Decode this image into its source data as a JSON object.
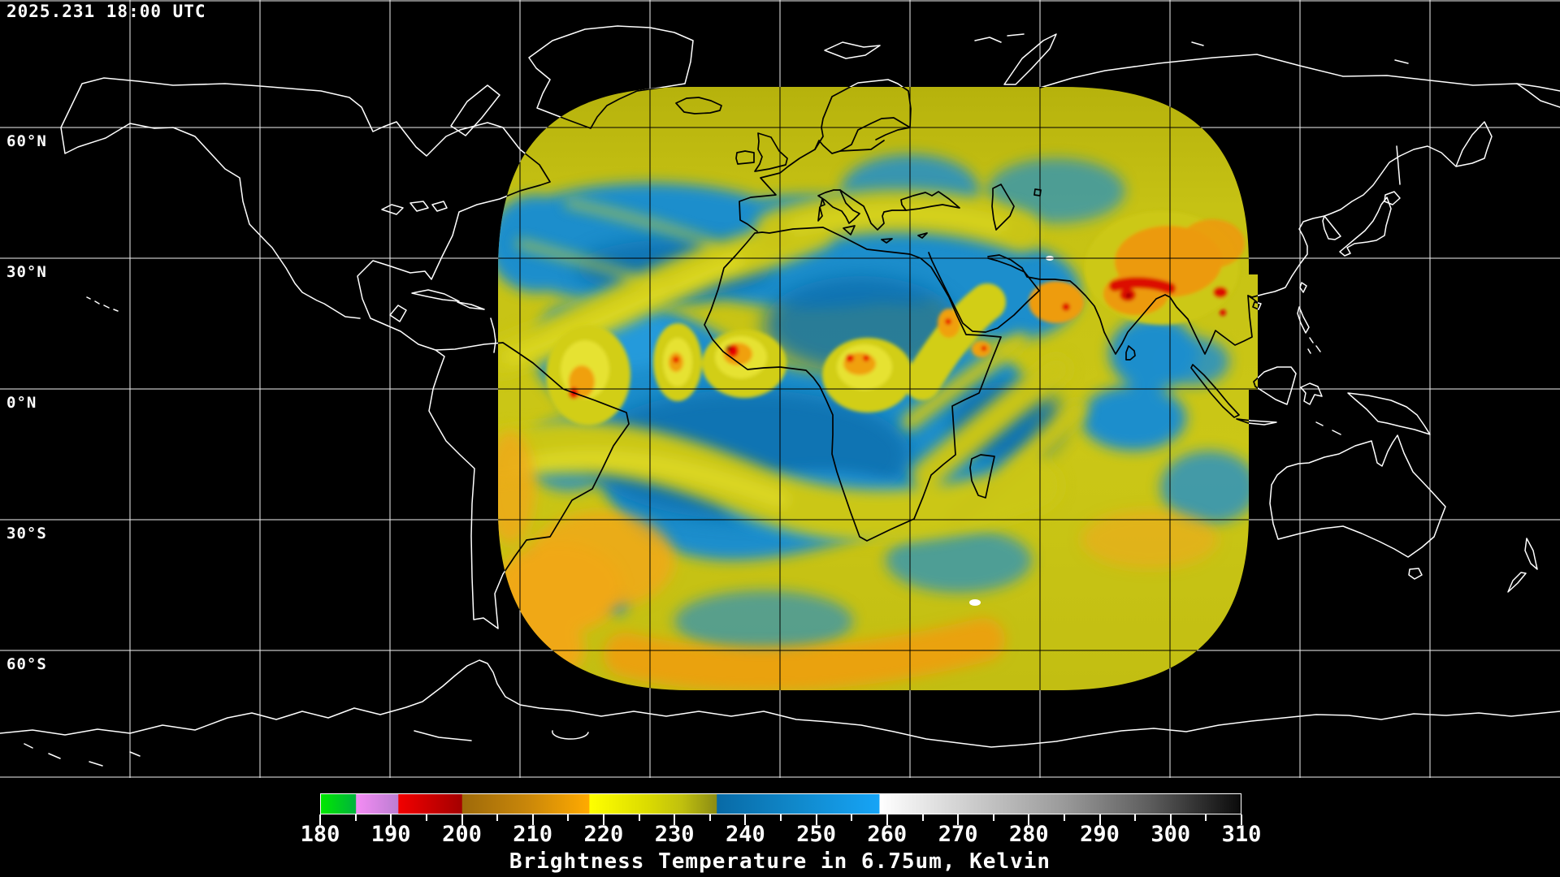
{
  "header": {
    "timestamp": "2025.231 18:00 UTC"
  },
  "map": {
    "latitude_labels": [
      {
        "text": "60°N",
        "lat": 60
      },
      {
        "text": "30°N",
        "lat": 30
      },
      {
        "text": "0°N",
        "lat": 0
      },
      {
        "text": "30°S",
        "lat": -30
      },
      {
        "text": "60°S",
        "lat": -60
      }
    ],
    "grid_lon_step_deg": 30,
    "grid_lat_step_deg": 30
  },
  "colorbar": {
    "title": "Brightness Temperature in 6.75um, Kelvin",
    "unit": "Kelvin",
    "min": 180,
    "max": 310,
    "minor_tick_step": 5,
    "tick_values": [
      180,
      190,
      200,
      210,
      220,
      230,
      240,
      250,
      260,
      270,
      280,
      290,
      300,
      310
    ],
    "stops": [
      {
        "t": 180,
        "c": "#00e800"
      },
      {
        "t": 184.9,
        "c": "#00b43c"
      },
      {
        "t": 185,
        "c": "#f48cf4"
      },
      {
        "t": 190.9,
        "c": "#bc7ed2"
      },
      {
        "t": 191,
        "c": "#f20000"
      },
      {
        "t": 199.9,
        "c": "#a40000"
      },
      {
        "t": 200,
        "c": "#9e6a0a"
      },
      {
        "t": 209,
        "c": "#c8860a"
      },
      {
        "t": 217.9,
        "c": "#ffaa00"
      },
      {
        "t": 218,
        "c": "#ffff00"
      },
      {
        "t": 226,
        "c": "#dcdc00"
      },
      {
        "t": 231,
        "c": "#c0c00e"
      },
      {
        "t": 235.9,
        "c": "#8c8c14"
      },
      {
        "t": 236,
        "c": "#086aa6"
      },
      {
        "t": 247,
        "c": "#1088ca"
      },
      {
        "t": 258.9,
        "c": "#16a4f6"
      },
      {
        "t": 259,
        "c": "#ffffff"
      },
      {
        "t": 272,
        "c": "#cccccc"
      },
      {
        "t": 285,
        "c": "#9a9a9a"
      },
      {
        "t": 297,
        "c": "#5e5e5e"
      },
      {
        "t": 310,
        "c": "#0a0a0a"
      }
    ],
    "palette_colors": {
      "cold_green": "#00e800",
      "violet": "#e08ae0",
      "red": "#e00000",
      "orange": "#f0a010",
      "yellow": "#e8e400",
      "olive": "#a8a410",
      "blue": "#1e8ecc",
      "white": "#ffffff",
      "warm_black": "#0a0a0a"
    }
  }
}
